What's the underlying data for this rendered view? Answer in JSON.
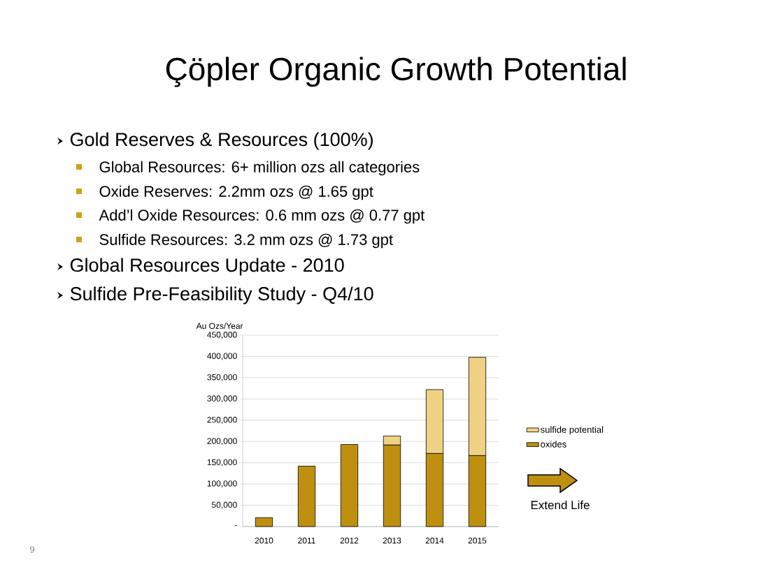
{
  "chart_data": {
    "type": "bar",
    "title": "Çöpler Organic Growth Potential",
    "ylabel": "Au Ozs/Year",
    "categories": [
      "2010",
      "2011",
      "2012",
      "2013",
      "2014",
      "2015"
    ],
    "series": [
      {
        "name": "oxides",
        "color": "#bf8f0f",
        "values": [
          21000,
          142000,
          193000,
          192000,
          172000,
          167000
        ]
      },
      {
        "name": "sulfide potential",
        "color": "#f0d184",
        "values": [
          null,
          null,
          null,
          21000,
          150000,
          231000
        ]
      }
    ],
    "stacked": true,
    "ylim": [
      0,
      450000
    ],
    "yticks": [
      {
        "value": 0,
        "label": "-"
      },
      {
        "value": 50000,
        "label": "50,000"
      },
      {
        "value": 100000,
        "label": "100,000"
      },
      {
        "value": 150000,
        "label": "150,000"
      },
      {
        "value": 200000,
        "label": "200,000"
      },
      {
        "value": 250000,
        "label": "250,000"
      },
      {
        "value": 300000,
        "label": "300,000"
      },
      {
        "value": 350000,
        "label": "350,000"
      },
      {
        "value": 400000,
        "label": "400,000"
      },
      {
        "value": 450000,
        "label": "450,000"
      }
    ],
    "grid": "y",
    "legend": "right",
    "annotations": [
      "Gold Reserves & Resources (100%)",
      "Global Resources: 6+ million ozs all categories",
      "Oxide Reserves:  2.2mm ozs @ 1.65 gpt",
      "Add’l Oxide Resources:  0.6 mm ozs @ 0.77 gpt",
      "Sulfide Resources:  3.2 mm ozs @ 1.73 gpt",
      "Global Resources Update - 2010",
      "Sulfide Pre-Feasibility Study - Q4/10",
      "Extend Life",
      "9"
    ]
  }
}
